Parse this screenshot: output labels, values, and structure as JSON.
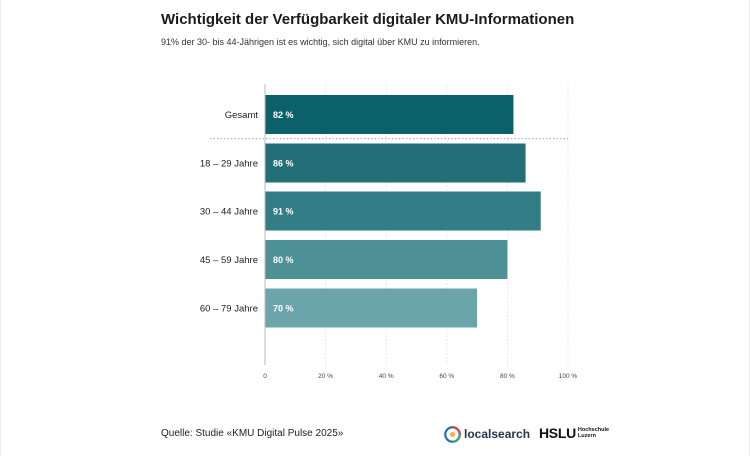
{
  "chart_data": {
    "type": "bar",
    "orientation": "horizontal",
    "title": "Wichtigkeit der Verfügbarkeit digitaler KMU-Informationen",
    "subtitle": "91% der 30- bis 44-Jährigen ist es wichtig, sich digital über KMU zu informieren.",
    "categories": [
      "Gesamt",
      "18 – 29 Jahre",
      "30 – 44 Jahre",
      "45 – 59 Jahre",
      "60 – 79 Jahre"
    ],
    "values": [
      82,
      86,
      91,
      80,
      70
    ],
    "value_labels": [
      "82 %",
      "86 %",
      "91 %",
      "80 %",
      "70 %"
    ],
    "colors": [
      "#0b6069",
      "#226f78",
      "#337d86",
      "#4d9096",
      "#6ba4aa"
    ],
    "xlim": [
      0,
      100
    ],
    "ticks": [
      0,
      20,
      40,
      60,
      80,
      100
    ],
    "tick_labels": [
      "0",
      "20 %",
      "40 %",
      "60 %",
      "80 %",
      "100 %"
    ],
    "separator_after": "Gesamt",
    "xlabel": "",
    "ylabel": ""
  },
  "footer": {
    "source": "Quelle: Studie «KMU Digital Pulse 2025»",
    "logo_localsearch": "localsearch",
    "logo_hslu": "HSLU",
    "logo_hslu_sub1": "Hochschule",
    "logo_hslu_sub2": "Luzern"
  },
  "icons": {
    "localsearch": "localsearch-logo-icon"
  }
}
